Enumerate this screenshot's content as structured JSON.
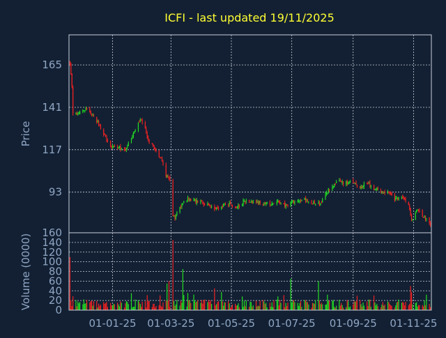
{
  "chart_data": {
    "type": "candlestick",
    "title": "ICFI - last updated 19/11/2025",
    "ticker": "ICFI",
    "price_panel": {
      "ylabel": "Price",
      "yticks": [
        93,
        117,
        141,
        165
      ],
      "ylim": [
        70,
        182
      ],
      "grid": true
    },
    "volume_panel": {
      "ylabel": "Volume (0000)",
      "yticks": [
        0,
        20,
        40,
        60,
        80,
        100,
        120,
        140,
        160
      ],
      "ylim": [
        0,
        160
      ],
      "grid": true
    },
    "x_tick_labels": [
      "01-01-25",
      "01-03-25",
      "01-05-25",
      "01-07-25",
      "01-09-25",
      "01-11-25"
    ],
    "x_tick_dates": [
      "2025-01-01",
      "2025-03-01",
      "2025-05-01",
      "2025-07-01",
      "2025-09-01",
      "2025-11-01"
    ],
    "x_range": [
      "2024-11-18",
      "2025-11-19"
    ],
    "close_path": [
      [
        "2024-11-19",
        165
      ],
      [
        "2024-11-21",
        152
      ],
      [
        "2024-11-22",
        138
      ],
      [
        "2024-11-26",
        137
      ],
      [
        "2024-12-02",
        139
      ],
      [
        "2024-12-06",
        140
      ],
      [
        "2024-12-12",
        136
      ],
      [
        "2024-12-18",
        131
      ],
      [
        "2024-12-24",
        125
      ],
      [
        "2024-12-30",
        119
      ],
      [
        "2025-01-06",
        118
      ],
      [
        "2025-01-13",
        117
      ],
      [
        "2025-01-17",
        120
      ],
      [
        "2025-01-24",
        128
      ],
      [
        "2025-01-29",
        134
      ],
      [
        "2025-02-03",
        128
      ],
      [
        "2025-02-07",
        121
      ],
      [
        "2025-02-14",
        117
      ],
      [
        "2025-02-20",
        110
      ],
      [
        "2025-02-24",
        103
      ],
      [
        "2025-02-28",
        100
      ],
      [
        "2025-03-03",
        79
      ],
      [
        "2025-03-05",
        79
      ],
      [
        "2025-03-10",
        85
      ],
      [
        "2025-03-17",
        89
      ],
      [
        "2025-03-24",
        88
      ],
      [
        "2025-04-01",
        88
      ],
      [
        "2025-04-08",
        85
      ],
      [
        "2025-04-15",
        84
      ],
      [
        "2025-04-22",
        85
      ],
      [
        "2025-04-29",
        86
      ],
      [
        "2025-05-06",
        84
      ],
      [
        "2025-05-13",
        88
      ],
      [
        "2025-05-20",
        88
      ],
      [
        "2025-05-28",
        87
      ],
      [
        "2025-06-04",
        86
      ],
      [
        "2025-06-11",
        87
      ],
      [
        "2025-06-18",
        88
      ],
      [
        "2025-06-25",
        85
      ],
      [
        "2025-07-02",
        88
      ],
      [
        "2025-07-09",
        88
      ],
      [
        "2025-07-16",
        89
      ],
      [
        "2025-07-23",
        87
      ],
      [
        "2025-07-30",
        86
      ],
      [
        "2025-08-04",
        92
      ],
      [
        "2025-08-11",
        97
      ],
      [
        "2025-08-18",
        99
      ],
      [
        "2025-08-25",
        98
      ],
      [
        "2025-09-01",
        99
      ],
      [
        "2025-09-08",
        96
      ],
      [
        "2025-09-15",
        98
      ],
      [
        "2025-09-22",
        95
      ],
      [
        "2025-09-29",
        94
      ],
      [
        "2025-10-06",
        93
      ],
      [
        "2025-10-13",
        89
      ],
      [
        "2025-10-20",
        90
      ],
      [
        "2025-10-27",
        87
      ],
      [
        "2025-10-30",
        77
      ],
      [
        "2025-11-04",
        83
      ],
      [
        "2025-11-10",
        80
      ],
      [
        "2025-11-19",
        75
      ]
    ],
    "volume_spikes": [
      [
        "2024-11-19",
        110
      ],
      [
        "2025-01-20",
        35
      ],
      [
        "2025-02-25",
        55
      ],
      [
        "2025-02-27",
        60
      ],
      [
        "2025-03-03",
        145
      ],
      [
        "2025-03-13",
        85
      ],
      [
        "2025-04-14",
        45
      ],
      [
        "2025-06-30",
        65
      ],
      [
        "2025-07-28",
        60
      ],
      [
        "2025-10-29",
        50
      ]
    ]
  }
}
